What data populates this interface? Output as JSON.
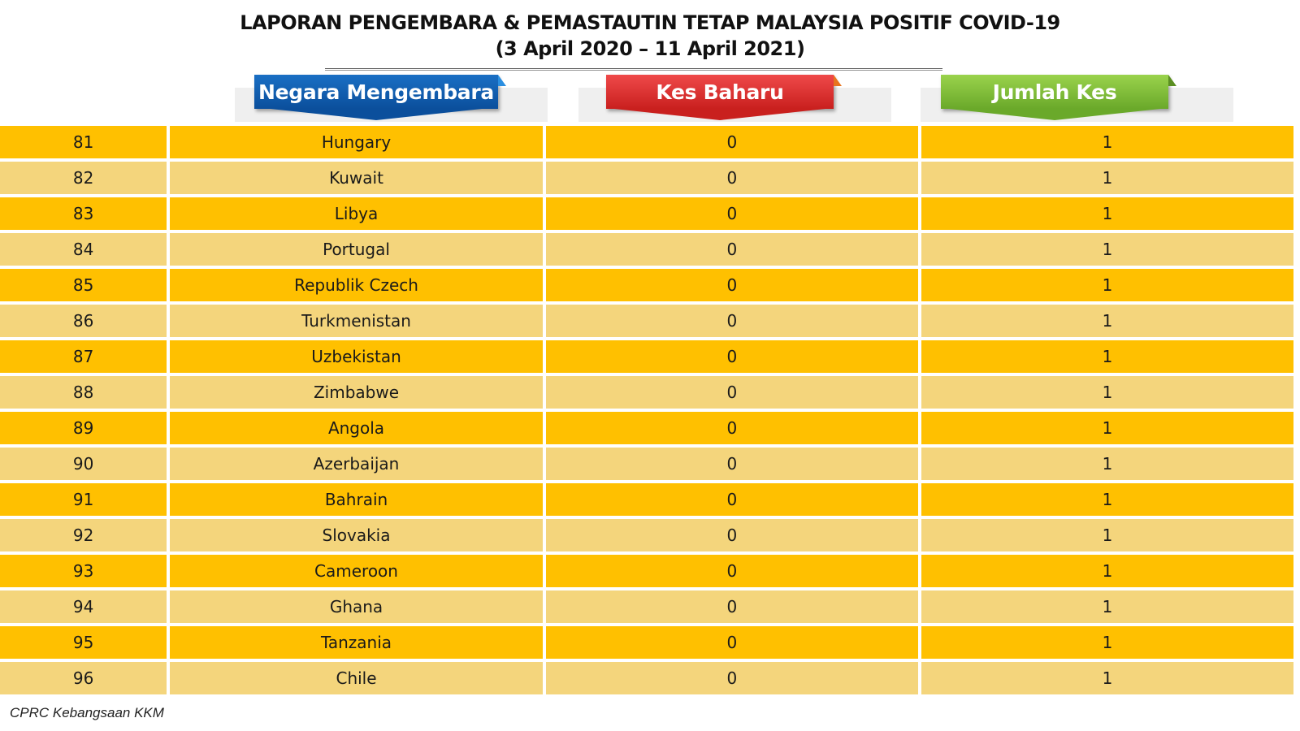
{
  "title": {
    "line1": "LAPORAN PENGEMBARA & PEMASTAUTIN TETAP MALAYSIA POSITIF COVID-19",
    "line2": "(3 April 2020 – 11 April  2021)"
  },
  "headers": {
    "country": "Negara Mengembara",
    "new_cases": "Kes Baharu",
    "total_cases": "Jumlah Kes"
  },
  "colors": {
    "row_dark": "#ffc000",
    "row_light": "#f4d57c",
    "header_blue": "#0b4f9c",
    "header_red": "#c9201e",
    "header_green": "#6aa92a"
  },
  "rows": [
    {
      "no": "81",
      "country": "Hungary",
      "new": "0",
      "total": "1"
    },
    {
      "no": "82",
      "country": "Kuwait",
      "new": "0",
      "total": "1"
    },
    {
      "no": "83",
      "country": "Libya",
      "new": "0",
      "total": "1"
    },
    {
      "no": "84",
      "country": "Portugal",
      "new": "0",
      "total": "1"
    },
    {
      "no": "85",
      "country": "Republik Czech",
      "new": "0",
      "total": "1"
    },
    {
      "no": "86",
      "country": "Turkmenistan",
      "new": "0",
      "total": "1"
    },
    {
      "no": "87",
      "country": "Uzbekistan",
      "new": "0",
      "total": "1"
    },
    {
      "no": "88",
      "country": "Zimbabwe",
      "new": "0",
      "total": "1"
    },
    {
      "no": "89",
      "country": "Angola",
      "new": "0",
      "total": "1"
    },
    {
      "no": "90",
      "country": "Azerbaijan",
      "new": "0",
      "total": "1"
    },
    {
      "no": "91",
      "country": "Bahrain",
      "new": "0",
      "total": "1"
    },
    {
      "no": "92",
      "country": "Slovakia",
      "new": "0",
      "total": "1"
    },
    {
      "no": "93",
      "country": "Cameroon",
      "new": "0",
      "total": "1"
    },
    {
      "no": "94",
      "country": "Ghana",
      "new": "0",
      "total": "1"
    },
    {
      "no": "95",
      "country": "Tanzania",
      "new": "0",
      "total": "1"
    },
    {
      "no": "96",
      "country": "Chile",
      "new": "0",
      "total": "1"
    }
  ],
  "footer": "CPRC Kebangsaan KKM"
}
